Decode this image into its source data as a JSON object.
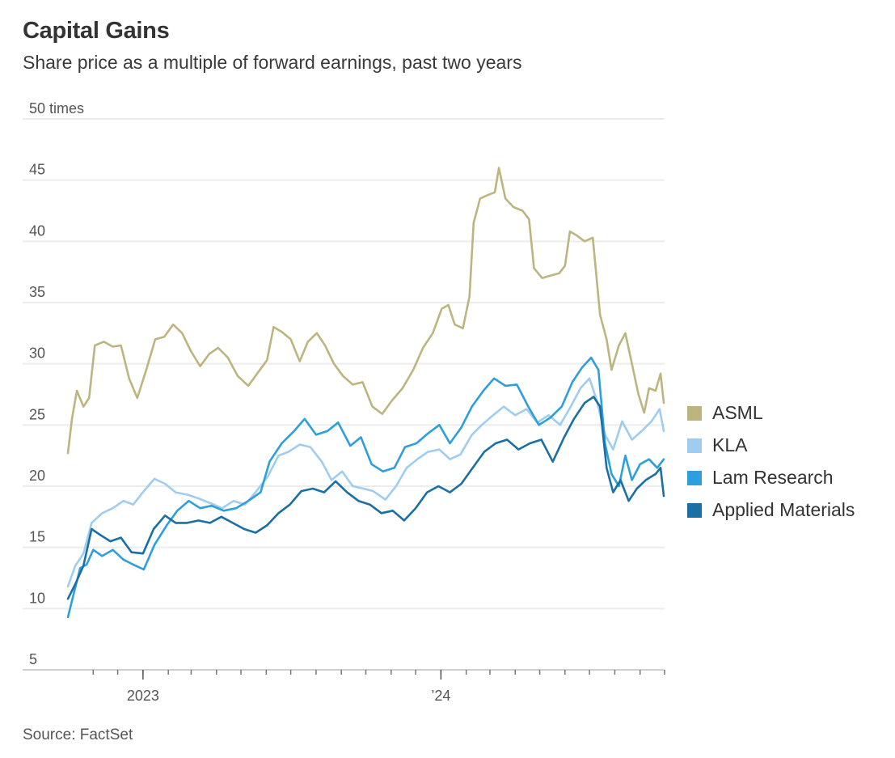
{
  "header": {
    "title": "Capital Gains",
    "subtitle": "Share price as a multiple of forward earnings, past two years"
  },
  "footer": {
    "source": "Source: FactSet"
  },
  "chart_data": {
    "type": "line",
    "title": "Capital Gains",
    "subtitle": "Share price as a multiple of forward earnings, past two years",
    "ylabel": "",
    "xlabel": "",
    "y_unit_label": "times",
    "ylim": [
      5,
      50
    ],
    "yticks": [
      5,
      10,
      15,
      20,
      25,
      30,
      35,
      40,
      45,
      50
    ],
    "ytick_labels": [
      "5",
      "10",
      "15",
      "20",
      "25",
      "30",
      "35",
      "40",
      "45",
      "50 times"
    ],
    "xlim": [
      "2022-10-01",
      "2024-10-01"
    ],
    "xtick_labels": [
      {
        "date": "2023-01-01",
        "label": "2023"
      },
      {
        "date": "2024-01-01",
        "label": "’24"
      }
    ],
    "grid": true,
    "legend": "right",
    "series": [
      {
        "name": "ASML",
        "color": "#bdb57f",
        "points": [
          [
            "2022-10-01",
            22.7
          ],
          [
            "2022-10-06",
            25.5
          ],
          [
            "2022-10-12",
            27.8
          ],
          [
            "2022-10-20",
            26.5
          ],
          [
            "2022-10-27",
            27.2
          ],
          [
            "2022-11-03",
            31.5
          ],
          [
            "2022-11-14",
            31.8
          ],
          [
            "2022-11-25",
            31.4
          ],
          [
            "2022-12-05",
            31.5
          ],
          [
            "2022-12-15",
            28.8
          ],
          [
            "2022-12-25",
            27.2
          ],
          [
            "2023-01-05",
            29.5
          ],
          [
            "2023-01-16",
            32.0
          ],
          [
            "2023-01-27",
            32.2
          ],
          [
            "2023-02-07",
            33.2
          ],
          [
            "2023-02-18",
            32.5
          ],
          [
            "2023-03-01",
            31.0
          ],
          [
            "2023-03-12",
            29.8
          ],
          [
            "2023-03-23",
            30.8
          ],
          [
            "2023-04-03",
            31.3
          ],
          [
            "2023-04-15",
            30.5
          ],
          [
            "2023-04-27",
            29.0
          ],
          [
            "2023-05-10",
            28.2
          ],
          [
            "2023-05-22",
            29.3
          ],
          [
            "2023-06-02",
            30.3
          ],
          [
            "2023-06-10",
            33.0
          ],
          [
            "2023-06-20",
            32.6
          ],
          [
            "2023-07-01",
            32.0
          ],
          [
            "2023-07-12",
            30.2
          ],
          [
            "2023-07-22",
            31.8
          ],
          [
            "2023-08-02",
            32.5
          ],
          [
            "2023-08-12",
            31.5
          ],
          [
            "2023-08-23",
            30.0
          ],
          [
            "2023-09-03",
            29.0
          ],
          [
            "2023-09-15",
            28.3
          ],
          [
            "2023-09-27",
            28.5
          ],
          [
            "2023-10-09",
            26.5
          ],
          [
            "2023-10-21",
            25.9
          ],
          [
            "2023-11-02",
            27.0
          ],
          [
            "2023-11-15",
            28.0
          ],
          [
            "2023-11-28",
            29.5
          ],
          [
            "2023-12-10",
            31.3
          ],
          [
            "2023-12-22",
            32.5
          ],
          [
            "2024-01-02",
            34.5
          ],
          [
            "2024-01-10",
            34.8
          ],
          [
            "2024-01-18",
            33.2
          ],
          [
            "2024-01-28",
            32.9
          ],
          [
            "2024-02-05",
            35.5
          ],
          [
            "2024-02-10",
            41.5
          ],
          [
            "2024-02-18",
            43.5
          ],
          [
            "2024-02-28",
            43.8
          ],
          [
            "2024-03-07",
            44.0
          ],
          [
            "2024-03-12",
            46.0
          ],
          [
            "2024-03-20",
            43.5
          ],
          [
            "2024-03-30",
            42.8
          ],
          [
            "2024-04-10",
            42.5
          ],
          [
            "2024-04-18",
            41.8
          ],
          [
            "2024-04-24",
            37.8
          ],
          [
            "2024-05-04",
            37.0
          ],
          [
            "2024-05-14",
            37.2
          ],
          [
            "2024-05-25",
            37.4
          ],
          [
            "2024-06-01",
            38.0
          ],
          [
            "2024-06-07",
            40.8
          ],
          [
            "2024-06-15",
            40.5
          ],
          [
            "2024-06-25",
            40.0
          ],
          [
            "2024-07-05",
            40.3
          ],
          [
            "2024-07-14",
            34.0
          ],
          [
            "2024-07-22",
            32.0
          ],
          [
            "2024-07-28",
            29.5
          ],
          [
            "2024-08-06",
            31.5
          ],
          [
            "2024-08-14",
            32.5
          ],
          [
            "2024-08-22",
            30.0
          ],
          [
            "2024-08-30",
            27.5
          ],
          [
            "2024-09-06",
            26.0
          ],
          [
            "2024-09-12",
            28.0
          ],
          [
            "2024-09-20",
            27.8
          ],
          [
            "2024-09-26",
            29.2
          ],
          [
            "2024-09-30",
            26.8
          ]
        ]
      },
      {
        "name": "KLA",
        "color": "#9fcdf0",
        "points": [
          [
            "2022-10-01",
            11.8
          ],
          [
            "2022-10-10",
            13.5
          ],
          [
            "2022-10-20",
            14.5
          ],
          [
            "2022-10-30",
            17.0
          ],
          [
            "2022-11-12",
            17.8
          ],
          [
            "2022-11-25",
            18.2
          ],
          [
            "2022-12-08",
            18.8
          ],
          [
            "2022-12-20",
            18.5
          ],
          [
            "2023-01-02",
            19.6
          ],
          [
            "2023-01-15",
            20.6
          ],
          [
            "2023-01-28",
            20.2
          ],
          [
            "2023-02-10",
            19.5
          ],
          [
            "2023-02-25",
            19.3
          ],
          [
            "2023-03-10",
            19.0
          ],
          [
            "2023-03-25",
            18.6
          ],
          [
            "2023-04-08",
            18.2
          ],
          [
            "2023-04-22",
            18.8
          ],
          [
            "2023-05-06",
            18.5
          ],
          [
            "2023-05-20",
            19.6
          ],
          [
            "2023-06-03",
            20.8
          ],
          [
            "2023-06-16",
            22.5
          ],
          [
            "2023-06-28",
            22.8
          ],
          [
            "2023-07-12",
            23.4
          ],
          [
            "2023-07-25",
            23.2
          ],
          [
            "2023-08-08",
            22.0
          ],
          [
            "2023-08-20",
            20.5
          ],
          [
            "2023-09-02",
            21.2
          ],
          [
            "2023-09-15",
            20.0
          ],
          [
            "2023-09-28",
            19.8
          ],
          [
            "2023-10-10",
            19.6
          ],
          [
            "2023-10-25",
            18.9
          ],
          [
            "2023-11-07",
            20.0
          ],
          [
            "2023-11-20",
            21.5
          ],
          [
            "2023-12-03",
            22.2
          ],
          [
            "2023-12-16",
            22.8
          ],
          [
            "2023-12-30",
            23.0
          ],
          [
            "2024-01-12",
            22.2
          ],
          [
            "2024-01-25",
            22.6
          ],
          [
            "2024-02-08",
            24.2
          ],
          [
            "2024-02-20",
            25.0
          ],
          [
            "2024-03-05",
            25.8
          ],
          [
            "2024-03-18",
            26.5
          ],
          [
            "2024-04-01",
            25.8
          ],
          [
            "2024-04-15",
            26.3
          ],
          [
            "2024-04-28",
            25.2
          ],
          [
            "2024-05-12",
            25.8
          ],
          [
            "2024-05-26",
            25.0
          ],
          [
            "2024-06-08",
            26.5
          ],
          [
            "2024-06-20",
            28.0
          ],
          [
            "2024-07-01",
            28.8
          ],
          [
            "2024-07-10",
            27.0
          ],
          [
            "2024-07-20",
            24.2
          ],
          [
            "2024-07-30",
            23.0
          ],
          [
            "2024-08-10",
            25.3
          ],
          [
            "2024-08-22",
            23.8
          ],
          [
            "2024-09-03",
            24.5
          ],
          [
            "2024-09-15",
            25.3
          ],
          [
            "2024-09-25",
            26.3
          ],
          [
            "2024-09-30",
            24.5
          ]
        ]
      },
      {
        "name": "Lam Research",
        "color": "#2c9fdc",
        "points": [
          [
            "2022-10-01",
            9.3
          ],
          [
            "2022-10-08",
            11.2
          ],
          [
            "2022-10-16",
            13.3
          ],
          [
            "2022-10-24",
            13.6
          ],
          [
            "2022-11-01",
            14.8
          ],
          [
            "2022-11-12",
            14.3
          ],
          [
            "2022-11-25",
            14.8
          ],
          [
            "2022-12-08",
            14.0
          ],
          [
            "2022-12-20",
            13.6
          ],
          [
            "2023-01-02",
            13.2
          ],
          [
            "2023-01-15",
            15.2
          ],
          [
            "2023-01-30",
            16.8
          ],
          [
            "2023-02-12",
            18.0
          ],
          [
            "2023-02-26",
            18.8
          ],
          [
            "2023-03-12",
            18.2
          ],
          [
            "2023-03-26",
            18.4
          ],
          [
            "2023-04-10",
            18.0
          ],
          [
            "2023-04-25",
            18.2
          ],
          [
            "2023-05-10",
            18.8
          ],
          [
            "2023-05-25",
            19.5
          ],
          [
            "2023-06-05",
            22.0
          ],
          [
            "2023-06-20",
            23.5
          ],
          [
            "2023-07-05",
            24.5
          ],
          [
            "2023-07-18",
            25.5
          ],
          [
            "2023-08-01",
            24.2
          ],
          [
            "2023-08-15",
            24.5
          ],
          [
            "2023-08-28",
            25.2
          ],
          [
            "2023-09-12",
            23.3
          ],
          [
            "2023-09-25",
            24.0
          ],
          [
            "2023-10-08",
            21.8
          ],
          [
            "2023-10-22",
            21.2
          ],
          [
            "2023-11-05",
            21.5
          ],
          [
            "2023-11-18",
            23.2
          ],
          [
            "2023-12-02",
            23.5
          ],
          [
            "2023-12-16",
            24.3
          ],
          [
            "2023-12-30",
            25.0
          ],
          [
            "2024-01-12",
            23.5
          ],
          [
            "2024-01-26",
            24.8
          ],
          [
            "2024-02-08",
            26.5
          ],
          [
            "2024-02-22",
            27.8
          ],
          [
            "2024-03-06",
            28.8
          ],
          [
            "2024-03-20",
            28.2
          ],
          [
            "2024-04-03",
            28.3
          ],
          [
            "2024-04-17",
            26.5
          ],
          [
            "2024-04-30",
            25.0
          ],
          [
            "2024-05-14",
            25.6
          ],
          [
            "2024-05-28",
            26.5
          ],
          [
            "2024-06-10",
            28.5
          ],
          [
            "2024-06-22",
            29.7
          ],
          [
            "2024-07-03",
            30.5
          ],
          [
            "2024-07-12",
            29.5
          ],
          [
            "2024-07-20",
            23.5
          ],
          [
            "2024-07-28",
            21.0
          ],
          [
            "2024-08-06",
            20.0
          ],
          [
            "2024-08-14",
            22.5
          ],
          [
            "2024-08-22",
            20.5
          ],
          [
            "2024-09-01",
            21.8
          ],
          [
            "2024-09-12",
            22.2
          ],
          [
            "2024-09-22",
            21.5
          ],
          [
            "2024-09-30",
            22.2
          ]
        ]
      },
      {
        "name": "Applied Materials",
        "color": "#1a6fa5",
        "points": [
          [
            "2022-10-01",
            10.8
          ],
          [
            "2022-10-10",
            12.0
          ],
          [
            "2022-10-20",
            13.5
          ],
          [
            "2022-10-30",
            16.5
          ],
          [
            "2022-11-10",
            16.0
          ],
          [
            "2022-11-22",
            15.5
          ],
          [
            "2022-12-05",
            15.8
          ],
          [
            "2022-12-18",
            14.6
          ],
          [
            "2023-01-01",
            14.5
          ],
          [
            "2023-01-14",
            16.5
          ],
          [
            "2023-01-28",
            17.6
          ],
          [
            "2023-02-10",
            17.0
          ],
          [
            "2023-02-24",
            17.0
          ],
          [
            "2023-03-10",
            17.2
          ],
          [
            "2023-03-24",
            17.0
          ],
          [
            "2023-04-07",
            17.5
          ],
          [
            "2023-04-21",
            17.0
          ],
          [
            "2023-05-05",
            16.5
          ],
          [
            "2023-05-19",
            16.2
          ],
          [
            "2023-06-02",
            16.8
          ],
          [
            "2023-06-16",
            17.8
          ],
          [
            "2023-06-30",
            18.5
          ],
          [
            "2023-07-14",
            19.6
          ],
          [
            "2023-07-28",
            19.8
          ],
          [
            "2023-08-11",
            19.5
          ],
          [
            "2023-08-25",
            20.4
          ],
          [
            "2023-09-08",
            19.5
          ],
          [
            "2023-09-22",
            18.8
          ],
          [
            "2023-10-06",
            18.5
          ],
          [
            "2023-10-20",
            17.8
          ],
          [
            "2023-11-03",
            18.0
          ],
          [
            "2023-11-17",
            17.2
          ],
          [
            "2023-12-01",
            18.2
          ],
          [
            "2023-12-15",
            19.5
          ],
          [
            "2023-12-29",
            20.0
          ],
          [
            "2024-01-12",
            19.5
          ],
          [
            "2024-01-26",
            20.2
          ],
          [
            "2024-02-09",
            21.5
          ],
          [
            "2024-02-23",
            22.8
          ],
          [
            "2024-03-08",
            23.5
          ],
          [
            "2024-03-22",
            23.8
          ],
          [
            "2024-04-05",
            23.0
          ],
          [
            "2024-04-19",
            23.5
          ],
          [
            "2024-05-03",
            23.8
          ],
          [
            "2024-05-17",
            22.0
          ],
          [
            "2024-05-31",
            24.0
          ],
          [
            "2024-06-12",
            25.5
          ],
          [
            "2024-06-25",
            26.8
          ],
          [
            "2024-07-06",
            27.3
          ],
          [
            "2024-07-14",
            26.5
          ],
          [
            "2024-07-22",
            21.5
          ],
          [
            "2024-07-30",
            19.5
          ],
          [
            "2024-08-08",
            20.5
          ],
          [
            "2024-08-18",
            18.8
          ],
          [
            "2024-08-28",
            19.8
          ],
          [
            "2024-09-08",
            20.5
          ],
          [
            "2024-09-20",
            21.0
          ],
          [
            "2024-09-26",
            21.5
          ],
          [
            "2024-09-30",
            19.2
          ]
        ]
      }
    ]
  }
}
